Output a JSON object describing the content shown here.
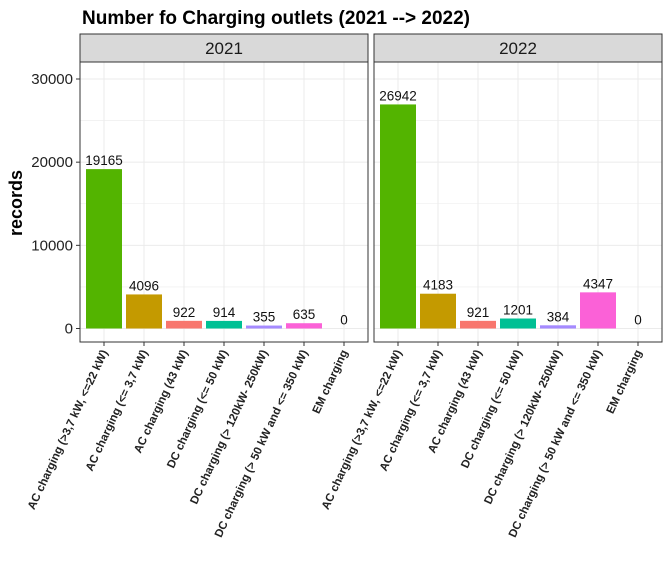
{
  "chart_data": {
    "type": "bar",
    "title": "Number fo Charging outlets (2021 --> 2022)",
    "ylabel": "records",
    "xlabel": "",
    "ylim": [
      0,
      32000
    ],
    "yticks": [
      0,
      10000,
      20000,
      30000
    ],
    "grid": true,
    "legend": "none",
    "categories": [
      "AC charging  (>3,7 kW,  <=22 kW)",
      "AC charging (<= 3,7 kW)",
      "AC charging (43 kW)",
      "DC charging (<= 50 kW)",
      "DC charging (> 120kW- 250kW)",
      "DC charging (> 50 kW and <= 350 kW)",
      "EM charging"
    ],
    "colors": [
      "#53B400",
      "#C49A00",
      "#F8766D",
      "#00C094",
      "#A58AFF",
      "#FB61D7",
      "#00B6EB"
    ],
    "panels": [
      {
        "name": "2021",
        "values": [
          19165,
          4096,
          922,
          914,
          355,
          635,
          0
        ]
      },
      {
        "name": "2022",
        "values": [
          26942,
          4183,
          921,
          1201,
          384,
          4347,
          0
        ]
      }
    ]
  }
}
